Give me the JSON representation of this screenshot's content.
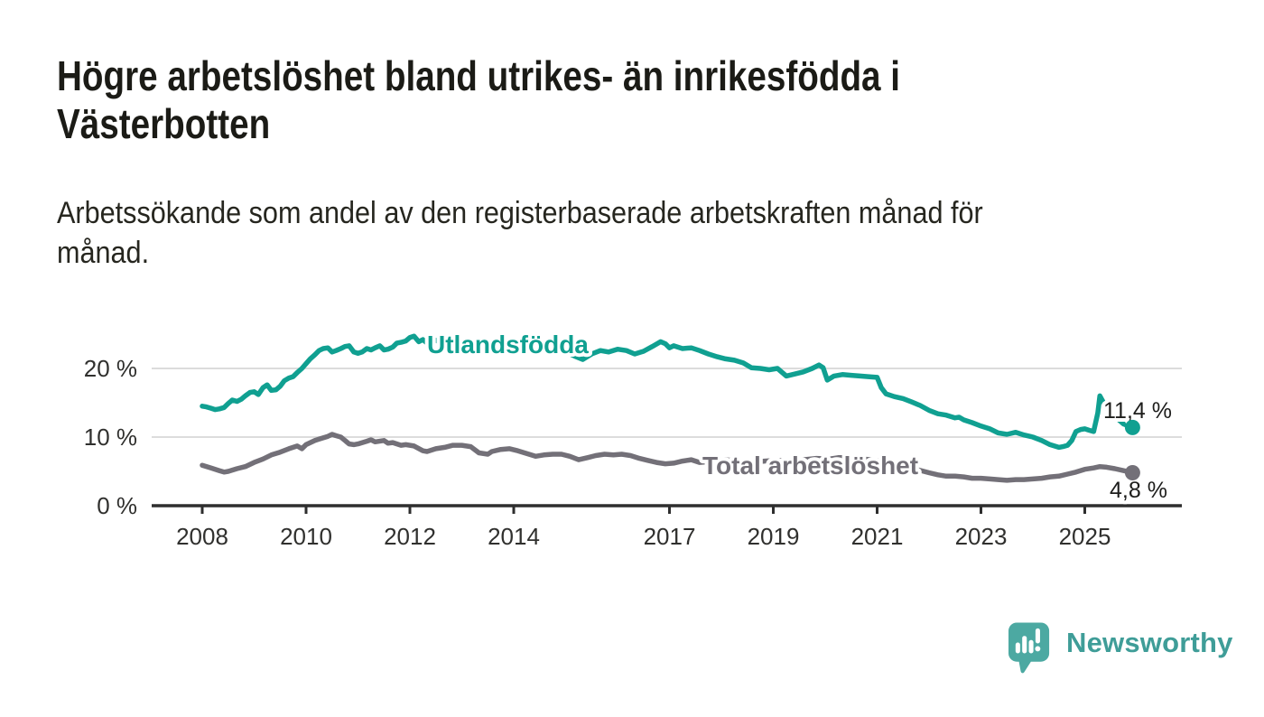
{
  "header": {
    "title_line1": "Högre arbetslöshet bland utrikes- än inrikesfödda i",
    "title_line2": "Västerbotten",
    "subtitle_line1": "Arbetssökande som andel av den registerbaserade arbetskraften månad för",
    "subtitle_line2": "månad."
  },
  "footer": {
    "brand": "Newsworthy",
    "logo_icon": "bar-chart-speech-bubble-icon",
    "logo_color": "#4CA9A2",
    "brand_text_color": "#3f9d98"
  },
  "chart_data": {
    "type": "line",
    "title": "Högre arbetslöshet bland utrikes- än inrikesfödda i Västerbotten",
    "subtitle": "Arbetssökande som andel av den registerbaserade arbetskraften månad för månad.",
    "xlabel": "",
    "ylabel": "",
    "xlim": [
      2007.03,
      2026.87
    ],
    "ylim": [
      0,
      26.5
    ],
    "grid": "horizontal",
    "legend": "inline-labels",
    "x_ticks": [
      "2008",
      "2010",
      "2012",
      "2014",
      "2017",
      "2019",
      "2021",
      "2023",
      "2025"
    ],
    "x_tick_years": [
      2008,
      2010,
      2012,
      2014,
      2017,
      2019,
      2021,
      2023,
      2025
    ],
    "y_ticks": [
      {
        "value": 0,
        "label": "0 %"
      },
      {
        "value": 10,
        "label": "10 %"
      },
      {
        "value": 20,
        "label": "20 %"
      }
    ],
    "style": {
      "axis_color": "#2e2e2e",
      "grid_color": "#dcdcdc",
      "tick_label_color": "#30302e",
      "value_label_color": "#1d1d1b",
      "background": "#ffffff"
    },
    "series": [
      {
        "name": "Utlandsfödda",
        "color": "#10a091",
        "end_label": "11,4 %",
        "last_value": 11.4,
        "points": [
          [
            2008.0,
            14.5
          ],
          [
            2008.08,
            14.4
          ],
          [
            2008.17,
            14.2
          ],
          [
            2008.25,
            14.0
          ],
          [
            2008.33,
            14.1
          ],
          [
            2008.42,
            14.3
          ],
          [
            2008.5,
            14.9
          ],
          [
            2008.58,
            15.4
          ],
          [
            2008.67,
            15.2
          ],
          [
            2008.75,
            15.5
          ],
          [
            2008.83,
            16.0
          ],
          [
            2008.92,
            16.5
          ],
          [
            2009.0,
            16.6
          ],
          [
            2009.08,
            16.2
          ],
          [
            2009.17,
            17.2
          ],
          [
            2009.25,
            17.6
          ],
          [
            2009.33,
            16.8
          ],
          [
            2009.42,
            16.9
          ],
          [
            2009.5,
            17.4
          ],
          [
            2009.58,
            18.2
          ],
          [
            2009.67,
            18.6
          ],
          [
            2009.75,
            18.8
          ],
          [
            2009.83,
            19.4
          ],
          [
            2009.92,
            20.0
          ],
          [
            2010.0,
            20.7
          ],
          [
            2010.08,
            21.4
          ],
          [
            2010.17,
            22.0
          ],
          [
            2010.25,
            22.6
          ],
          [
            2010.33,
            22.9
          ],
          [
            2010.42,
            23.0
          ],
          [
            2010.5,
            22.4
          ],
          [
            2010.58,
            22.6
          ],
          [
            2010.67,
            22.9
          ],
          [
            2010.75,
            23.2
          ],
          [
            2010.83,
            23.3
          ],
          [
            2010.92,
            22.4
          ],
          [
            2011.0,
            22.2
          ],
          [
            2011.08,
            22.4
          ],
          [
            2011.17,
            22.9
          ],
          [
            2011.25,
            22.7
          ],
          [
            2011.33,
            23.0
          ],
          [
            2011.42,
            23.3
          ],
          [
            2011.5,
            22.7
          ],
          [
            2011.58,
            22.8
          ],
          [
            2011.67,
            23.1
          ],
          [
            2011.75,
            23.7
          ],
          [
            2011.83,
            23.8
          ],
          [
            2011.92,
            24.0
          ],
          [
            2012.0,
            24.5
          ],
          [
            2012.08,
            24.7
          ],
          [
            2012.17,
            23.9
          ],
          [
            2012.25,
            24.2
          ],
          [
            2012.33,
            23.7
          ],
          [
            2012.42,
            23.9
          ],
          [
            2012.5,
            24.1
          ],
          [
            2012.58,
            23.8
          ],
          [
            2012.67,
            24.0
          ],
          [
            2012.75,
            23.7
          ],
          [
            2012.83,
            23.9
          ],
          [
            2012.92,
            23.6
          ],
          [
            2013.0,
            23.8
          ],
          [
            2013.17,
            23.5
          ],
          [
            2013.33,
            23.8
          ],
          [
            2013.5,
            23.4
          ],
          [
            2013.67,
            23.6
          ],
          [
            2013.83,
            23.2
          ],
          [
            2014.0,
            23.5
          ],
          [
            2014.17,
            23.1
          ],
          [
            2014.33,
            23.0
          ],
          [
            2014.5,
            23.3
          ],
          [
            2014.67,
            22.8
          ],
          [
            2014.83,
            22.6
          ],
          [
            2015.0,
            22.4
          ],
          [
            2015.17,
            21.8
          ],
          [
            2015.33,
            21.3
          ],
          [
            2015.5,
            22.1
          ],
          [
            2015.67,
            22.6
          ],
          [
            2015.83,
            22.4
          ],
          [
            2016.0,
            22.8
          ],
          [
            2016.17,
            22.6
          ],
          [
            2016.33,
            22.1
          ],
          [
            2016.5,
            22.5
          ],
          [
            2016.67,
            23.2
          ],
          [
            2016.83,
            23.9
          ],
          [
            2016.92,
            23.6
          ],
          [
            2017.0,
            23.0
          ],
          [
            2017.08,
            23.3
          ],
          [
            2017.25,
            22.9
          ],
          [
            2017.42,
            23.0
          ],
          [
            2017.58,
            22.6
          ],
          [
            2017.75,
            22.1
          ],
          [
            2017.92,
            21.7
          ],
          [
            2018.08,
            21.4
          ],
          [
            2018.25,
            21.2
          ],
          [
            2018.42,
            20.8
          ],
          [
            2018.58,
            20.1
          ],
          [
            2018.75,
            20.0
          ],
          [
            2018.92,
            19.8
          ],
          [
            2019.08,
            20.0
          ],
          [
            2019.25,
            18.9
          ],
          [
            2019.42,
            19.2
          ],
          [
            2019.58,
            19.5
          ],
          [
            2019.75,
            20.0
          ],
          [
            2019.88,
            20.5
          ],
          [
            2019.96,
            20.1
          ],
          [
            2020.04,
            18.3
          ],
          [
            2020.17,
            18.9
          ],
          [
            2020.33,
            19.1
          ],
          [
            2020.5,
            19.0
          ],
          [
            2020.67,
            18.9
          ],
          [
            2020.83,
            18.8
          ],
          [
            2021.0,
            18.7
          ],
          [
            2021.08,
            17.2
          ],
          [
            2021.17,
            16.3
          ],
          [
            2021.33,
            15.9
          ],
          [
            2021.5,
            15.6
          ],
          [
            2021.67,
            15.1
          ],
          [
            2021.83,
            14.6
          ],
          [
            2022.0,
            13.9
          ],
          [
            2022.17,
            13.4
          ],
          [
            2022.33,
            13.2
          ],
          [
            2022.5,
            12.8
          ],
          [
            2022.58,
            12.9
          ],
          [
            2022.67,
            12.5
          ],
          [
            2022.83,
            12.1
          ],
          [
            2023.0,
            11.6
          ],
          [
            2023.17,
            11.2
          ],
          [
            2023.33,
            10.6
          ],
          [
            2023.5,
            10.4
          ],
          [
            2023.67,
            10.7
          ],
          [
            2023.83,
            10.3
          ],
          [
            2024.0,
            10.0
          ],
          [
            2024.17,
            9.5
          ],
          [
            2024.33,
            8.9
          ],
          [
            2024.5,
            8.5
          ],
          [
            2024.58,
            8.6
          ],
          [
            2024.67,
            8.8
          ],
          [
            2024.75,
            9.5
          ],
          [
            2024.83,
            10.8
          ],
          [
            2024.92,
            11.1
          ],
          [
            2025.0,
            11.2
          ],
          [
            2025.08,
            11.0
          ],
          [
            2025.17,
            10.8
          ],
          [
            2025.25,
            13.5
          ],
          [
            2025.29,
            16.0
          ],
          [
            2025.42,
            14.2
          ],
          [
            2025.58,
            13.0
          ],
          [
            2025.75,
            11.9
          ],
          [
            2025.92,
            11.4
          ]
        ]
      },
      {
        "name": "Total arbetslöshet",
        "color": "#737078",
        "end_label": "4,8 %",
        "last_value": 4.8,
        "points": [
          [
            2008.0,
            5.9
          ],
          [
            2008.17,
            5.5
          ],
          [
            2008.33,
            5.1
          ],
          [
            2008.42,
            4.9
          ],
          [
            2008.5,
            5.0
          ],
          [
            2008.67,
            5.4
          ],
          [
            2008.83,
            5.7
          ],
          [
            2009.0,
            6.3
          ],
          [
            2009.17,
            6.8
          ],
          [
            2009.33,
            7.4
          ],
          [
            2009.5,
            7.8
          ],
          [
            2009.67,
            8.3
          ],
          [
            2009.83,
            8.7
          ],
          [
            2009.92,
            8.3
          ],
          [
            2010.0,
            8.9
          ],
          [
            2010.17,
            9.5
          ],
          [
            2010.25,
            9.7
          ],
          [
            2010.42,
            10.1
          ],
          [
            2010.5,
            10.4
          ],
          [
            2010.58,
            10.2
          ],
          [
            2010.67,
            10.0
          ],
          [
            2010.75,
            9.5
          ],
          [
            2010.83,
            9.0
          ],
          [
            2010.92,
            8.9
          ],
          [
            2011.0,
            9.0
          ],
          [
            2011.17,
            9.4
          ],
          [
            2011.25,
            9.6
          ],
          [
            2011.33,
            9.3
          ],
          [
            2011.5,
            9.5
          ],
          [
            2011.58,
            9.1
          ],
          [
            2011.67,
            9.2
          ],
          [
            2011.83,
            8.8
          ],
          [
            2011.92,
            8.9
          ],
          [
            2012.08,
            8.7
          ],
          [
            2012.25,
            8.0
          ],
          [
            2012.33,
            7.9
          ],
          [
            2012.5,
            8.3
          ],
          [
            2012.67,
            8.5
          ],
          [
            2012.83,
            8.8
          ],
          [
            2013.0,
            8.8
          ],
          [
            2013.17,
            8.6
          ],
          [
            2013.33,
            7.7
          ],
          [
            2013.5,
            7.5
          ],
          [
            2013.58,
            7.9
          ],
          [
            2013.75,
            8.2
          ],
          [
            2013.92,
            8.3
          ],
          [
            2014.08,
            8.0
          ],
          [
            2014.25,
            7.6
          ],
          [
            2014.42,
            7.2
          ],
          [
            2014.58,
            7.4
          ],
          [
            2014.75,
            7.5
          ],
          [
            2014.92,
            7.5
          ],
          [
            2015.08,
            7.2
          ],
          [
            2015.25,
            6.7
          ],
          [
            2015.42,
            7.0
          ],
          [
            2015.58,
            7.3
          ],
          [
            2015.75,
            7.5
          ],
          [
            2015.92,
            7.4
          ],
          [
            2016.08,
            7.5
          ],
          [
            2016.25,
            7.3
          ],
          [
            2016.42,
            6.9
          ],
          [
            2016.58,
            6.6
          ],
          [
            2016.75,
            6.3
          ],
          [
            2016.92,
            6.1
          ],
          [
            2017.08,
            6.2
          ],
          [
            2017.25,
            6.5
          ],
          [
            2017.42,
            6.7
          ],
          [
            2017.58,
            6.3
          ],
          [
            2017.75,
            6.4
          ],
          [
            2017.92,
            6.6
          ],
          [
            2018.08,
            6.7
          ],
          [
            2018.33,
            6.5
          ],
          [
            2018.58,
            6.3
          ],
          [
            2018.83,
            6.5
          ],
          [
            2019.08,
            6.6
          ],
          [
            2019.33,
            6.5
          ],
          [
            2019.58,
            6.7
          ],
          [
            2019.83,
            6.9
          ],
          [
            2020.08,
            6.8
          ],
          [
            2020.25,
            7.0
          ],
          [
            2020.42,
            7.0
          ],
          [
            2020.58,
            6.9
          ],
          [
            2020.75,
            6.8
          ],
          [
            2021.0,
            6.6
          ],
          [
            2021.25,
            6.2
          ],
          [
            2021.5,
            5.8
          ],
          [
            2021.75,
            5.3
          ],
          [
            2022.0,
            4.8
          ],
          [
            2022.17,
            4.5
          ],
          [
            2022.33,
            4.3
          ],
          [
            2022.5,
            4.3
          ],
          [
            2022.67,
            4.2
          ],
          [
            2022.83,
            4.0
          ],
          [
            2023.0,
            4.0
          ],
          [
            2023.17,
            3.9
          ],
          [
            2023.33,
            3.8
          ],
          [
            2023.5,
            3.7
          ],
          [
            2023.67,
            3.8
          ],
          [
            2023.83,
            3.8
          ],
          [
            2024.0,
            3.9
          ],
          [
            2024.17,
            4.0
          ],
          [
            2024.33,
            4.2
          ],
          [
            2024.5,
            4.3
          ],
          [
            2024.67,
            4.6
          ],
          [
            2024.83,
            4.9
          ],
          [
            2025.0,
            5.3
          ],
          [
            2025.17,
            5.5
          ],
          [
            2025.29,
            5.7
          ],
          [
            2025.42,
            5.6
          ],
          [
            2025.58,
            5.4
          ],
          [
            2025.75,
            5.1
          ],
          [
            2025.92,
            4.8
          ]
        ]
      }
    ]
  }
}
